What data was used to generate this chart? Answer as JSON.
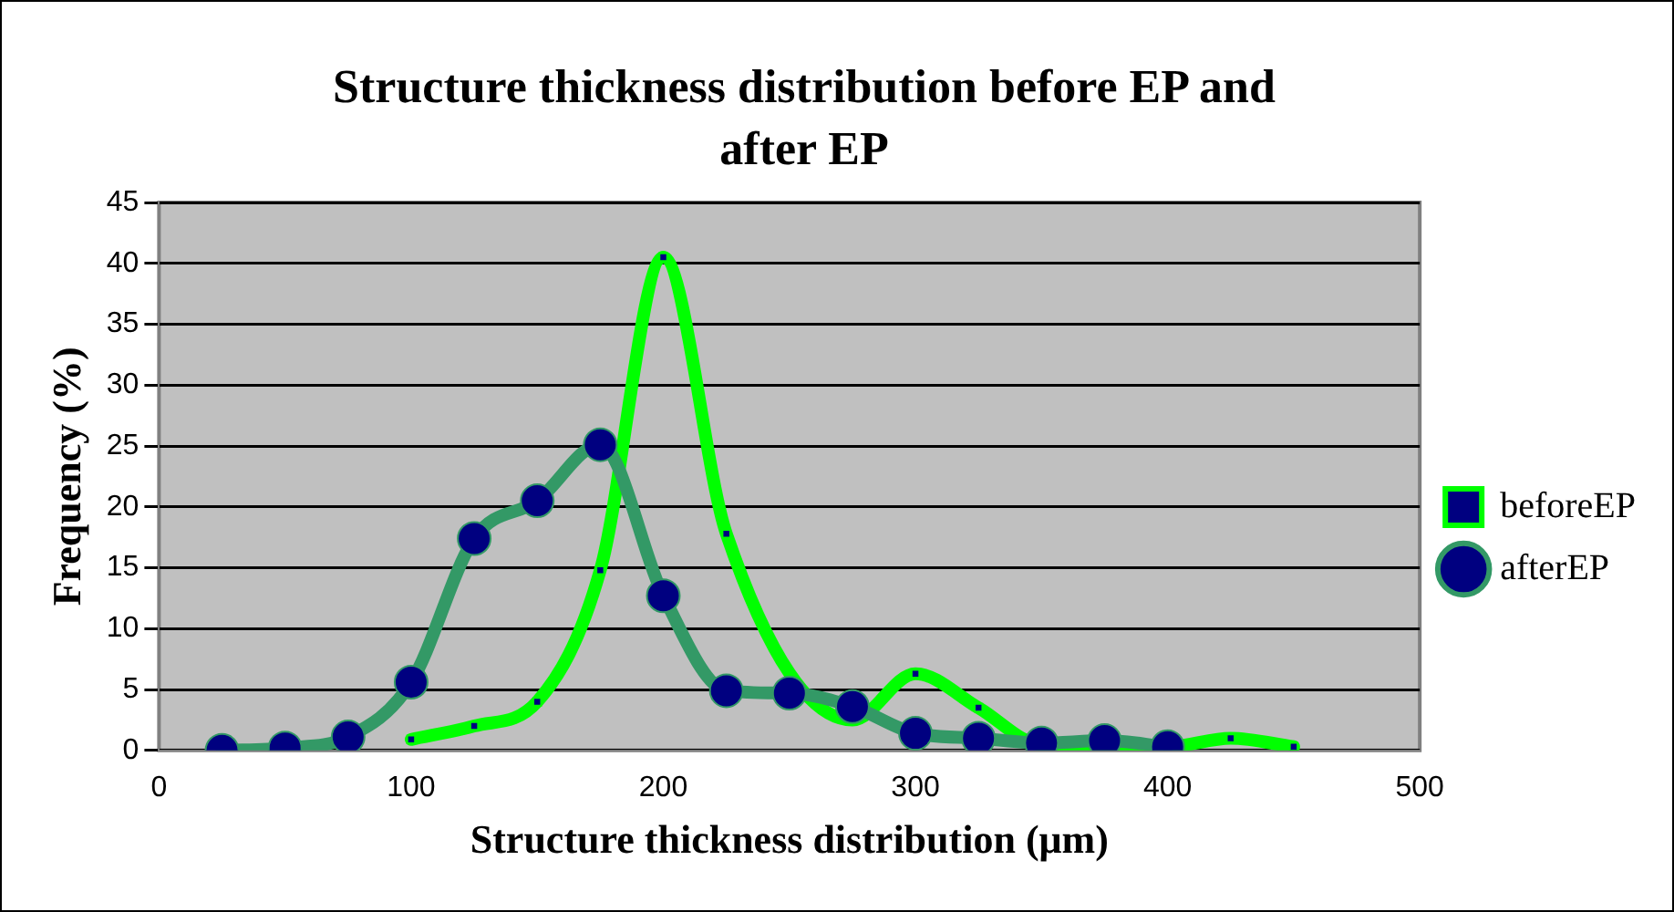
{
  "chart_data": {
    "type": "line",
    "title": "Structure thickness distribution before EP and after EP",
    "xlabel": "Structure thickness distribution (μm)",
    "ylabel": "Frequency (%)",
    "xlim": [
      0,
      500
    ],
    "xticks": [
      0,
      100,
      200,
      300,
      400,
      500
    ],
    "ylim": [
      0,
      45
    ],
    "yticks": [
      0,
      5,
      10,
      15,
      20,
      25,
      30,
      35,
      40,
      45
    ],
    "grid": "y",
    "legend": "right",
    "series": [
      {
        "name": "beforeEP",
        "color": "#00ff00",
        "marker": "square",
        "x": [
          100,
          125,
          150,
          175,
          200,
          225,
          250,
          275,
          300,
          325,
          350,
          375,
          400,
          425,
          450
        ],
        "values": [
          0.9,
          2,
          4,
          14.8,
          40.5,
          17.8,
          null,
          2.5,
          6.3,
          3.5,
          0.5,
          0.5,
          0.3,
          1,
          0.3
        ]
      },
      {
        "name": "afterEP",
        "color": "#339966",
        "marker": "circle",
        "x": [
          25,
          50,
          75,
          100,
          125,
          150,
          175,
          200,
          225,
          250,
          275,
          300,
          325,
          350,
          375,
          400
        ],
        "values": [
          0,
          0.2,
          1.1,
          5.6,
          17.4,
          20.5,
          25.1,
          12.7,
          4.9,
          4.7,
          3.6,
          1.4,
          1,
          0.6,
          0.8,
          0.3
        ]
      }
    ]
  }
}
